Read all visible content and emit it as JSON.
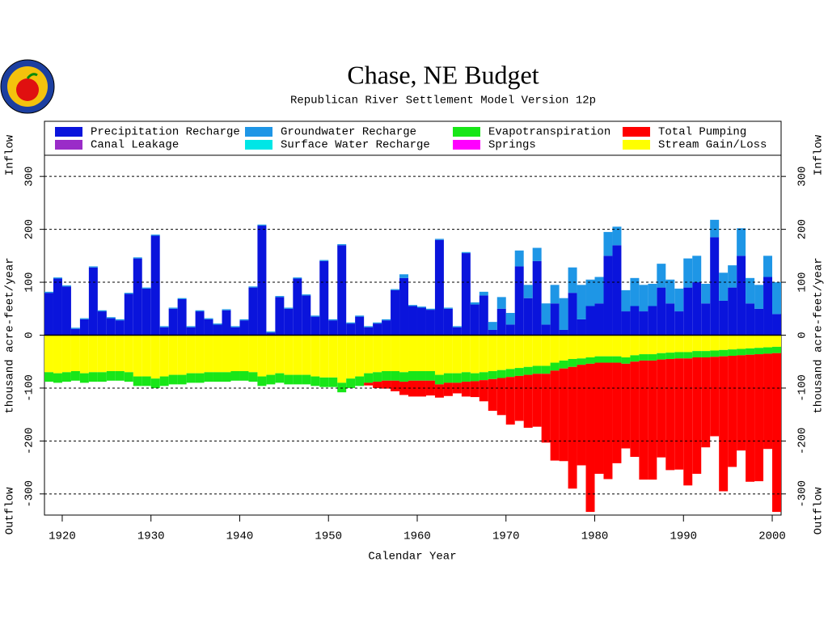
{
  "chart_data": {
    "type": "stacked-bar",
    "title": "Chase, NE Budget",
    "subtitle": "Republican River Settlement Model Version 12p",
    "xlabel": "Calendar Year",
    "ylabel": "thousand acre-feet/year",
    "ylabel_top": "Inflow",
    "ylabel_bottom": "Outflow",
    "x": [
      1918,
      1919,
      1920,
      1921,
      1922,
      1923,
      1924,
      1925,
      1926,
      1927,
      1928,
      1929,
      1930,
      1931,
      1932,
      1933,
      1934,
      1935,
      1936,
      1937,
      1938,
      1939,
      1940,
      1941,
      1942,
      1943,
      1944,
      1945,
      1946,
      1947,
      1948,
      1949,
      1950,
      1951,
      1952,
      1953,
      1954,
      1955,
      1956,
      1957,
      1958,
      1959,
      1960,
      1961,
      1962,
      1963,
      1964,
      1965,
      1966,
      1967,
      1968,
      1969,
      1970,
      1971,
      1972,
      1973,
      1974,
      1975,
      1976,
      1977,
      1978,
      1979,
      1980,
      1981,
      1982,
      1983,
      1984,
      1985,
      1986,
      1987,
      1988,
      1989,
      1990,
      1991,
      1992,
      1993,
      1994,
      1995,
      1996,
      1997,
      1998,
      1999,
      2000
    ],
    "xlim": [
      1918,
      2001
    ],
    "xticks": [
      1920,
      1930,
      1940,
      1950,
      1960,
      1970,
      1980,
      1990,
      2000
    ],
    "ylim": [
      -340,
      340
    ],
    "yticks": [
      -300,
      -200,
      -100,
      0,
      100,
      200,
      300
    ],
    "grid": true,
    "series": [
      {
        "name": "Precipitation Recharge",
        "color": "#0a14dc",
        "values": [
          80,
          107,
          92,
          12,
          30,
          128,
          45,
          32,
          28,
          78,
          145,
          88,
          188,
          15,
          50,
          68,
          15,
          45,
          30,
          20,
          47,
          15,
          28,
          90,
          207,
          5,
          72,
          50,
          107,
          75,
          35,
          140,
          28,
          170,
          22,
          35,
          15,
          22,
          28,
          85,
          108,
          55,
          52,
          48,
          180,
          50,
          15,
          155,
          58,
          75,
          10,
          50,
          20,
          130,
          70,
          140,
          20,
          60,
          10,
          80,
          30,
          55,
          60,
          150,
          170,
          45,
          55,
          45,
          55,
          90,
          60,
          45,
          90,
          100,
          60,
          185,
          65,
          90,
          150,
          60,
          50,
          110,
          40
        ]
      },
      {
        "name": "Canal Leakage",
        "color": "#9a2cc8",
        "values": [
          0,
          0,
          0,
          0,
          0,
          0,
          0,
          0,
          0,
          0,
          0,
          0,
          0,
          0,
          0,
          0,
          0,
          0,
          0,
          0,
          0,
          0,
          0,
          0,
          0,
          0,
          0,
          0,
          0,
          0,
          0,
          0,
          0,
          0,
          0,
          0,
          0,
          0,
          0,
          0,
          0,
          0,
          0,
          0,
          0,
          0,
          0,
          0,
          0,
          0,
          0,
          0,
          0,
          0,
          0,
          0,
          0,
          0,
          0,
          0,
          0,
          0,
          0,
          0,
          0,
          0,
          0,
          0,
          0,
          0,
          0,
          0,
          0,
          0,
          0,
          0,
          0,
          0,
          0,
          0,
          0,
          0,
          0
        ]
      },
      {
        "name": "Groundwater Recharge",
        "color": "#1e96e6",
        "values": [
          2,
          2,
          2,
          2,
          2,
          2,
          2,
          2,
          2,
          2,
          2,
          2,
          2,
          2,
          2,
          2,
          2,
          2,
          2,
          2,
          2,
          2,
          2,
          2,
          2,
          2,
          2,
          2,
          2,
          2,
          2,
          2,
          2,
          2,
          2,
          2,
          2,
          2,
          2,
          2,
          7,
          2,
          2,
          2,
          2,
          2,
          2,
          2,
          4,
          7,
          15,
          22,
          22,
          30,
          25,
          25,
          40,
          35,
          60,
          48,
          65,
          50,
          50,
          45,
          35,
          40,
          53,
          50,
          42,
          45,
          45,
          43,
          55,
          50,
          37,
          33,
          53,
          42,
          52,
          48,
          45,
          40,
          60
        ]
      },
      {
        "name": "Surface Water Recharge",
        "color": "#00e6e6",
        "values": [
          0,
          0,
          0,
          0,
          0,
          0,
          0,
          0,
          0,
          0,
          0,
          0,
          0,
          0,
          0,
          0,
          0,
          0,
          0,
          0,
          0,
          0,
          0,
          0,
          0,
          0,
          0,
          0,
          0,
          0,
          0,
          0,
          0,
          0,
          0,
          0,
          0,
          0,
          0,
          0,
          0,
          0,
          0,
          0,
          0,
          0,
          0,
          0,
          0,
          0,
          0,
          0,
          0,
          0,
          0,
          0,
          0,
          0,
          0,
          0,
          0,
          0,
          0,
          0,
          0,
          0,
          0,
          0,
          0,
          0,
          0,
          0,
          0,
          0,
          0,
          0,
          0,
          0,
          0,
          0,
          0,
          0,
          0
        ]
      },
      {
        "name": "Stream Gain/Loss",
        "color": "#ffff00",
        "values": [
          -70,
          -72,
          -70,
          -68,
          -72,
          -70,
          -70,
          -68,
          -68,
          -70,
          -78,
          -78,
          -82,
          -78,
          -75,
          -75,
          -72,
          -72,
          -70,
          -70,
          -70,
          -68,
          -68,
          -70,
          -78,
          -75,
          -72,
          -75,
          -75,
          -75,
          -78,
          -80,
          -80,
          -90,
          -82,
          -78,
          -72,
          -70,
          -68,
          -68,
          -70,
          -68,
          -68,
          -68,
          -75,
          -72,
          -72,
          -70,
          -72,
          -70,
          -68,
          -66,
          -64,
          -62,
          -60,
          -58,
          -58,
          -52,
          -48,
          -45,
          -44,
          -42,
          -40,
          -40,
          -40,
          -42,
          -38,
          -36,
          -36,
          -34,
          -33,
          -32,
          -32,
          -30,
          -30,
          -29,
          -28,
          -27,
          -26,
          -25,
          -24,
          -23,
          -22
        ]
      },
      {
        "name": "Evapotranspiration",
        "color": "#18e618",
        "values": [
          -18,
          -18,
          -18,
          -18,
          -18,
          -18,
          -18,
          -18,
          -18,
          -18,
          -18,
          -18,
          -18,
          -18,
          -18,
          -18,
          -18,
          -18,
          -18,
          -18,
          -18,
          -18,
          -18,
          -18,
          -18,
          -18,
          -18,
          -18,
          -18,
          -18,
          -18,
          -18,
          -18,
          -18,
          -18,
          -18,
          -18,
          -18,
          -18,
          -18,
          -18,
          -18,
          -18,
          -18,
          -18,
          -18,
          -18,
          -18,
          -15,
          -15,
          -15,
          -15,
          -15,
          -15,
          -15,
          -15,
          -15,
          -15,
          -15,
          -15,
          -12,
          -12,
          -12,
          -12,
          -12,
          -12,
          -12,
          -12,
          -12,
          -12,
          -12,
          -12,
          -12,
          -12,
          -12,
          -12,
          -12,
          -12,
          -12,
          -12,
          -12,
          -12,
          -12
        ]
      },
      {
        "name": "Springs",
        "color": "#ff00ff",
        "values": [
          0,
          0,
          0,
          0,
          0,
          0,
          0,
          0,
          0,
          0,
          0,
          0,
          0,
          0,
          0,
          0,
          0,
          0,
          0,
          0,
          0,
          0,
          0,
          0,
          0,
          0,
          0,
          0,
          0,
          0,
          0,
          0,
          0,
          0,
          0,
          0,
          0,
          0,
          0,
          0,
          0,
          0,
          0,
          0,
          0,
          0,
          0,
          0,
          0,
          0,
          0,
          0,
          0,
          0,
          0,
          0,
          0,
          0,
          0,
          0,
          0,
          0,
          0,
          0,
          0,
          0,
          0,
          0,
          0,
          0,
          0,
          0,
          0,
          0,
          0,
          0,
          0,
          0,
          0,
          0,
          0,
          0,
          0
        ]
      },
      {
        "name": "Total Pumping",
        "color": "#ff0000",
        "values": [
          0,
          0,
          0,
          0,
          0,
          0,
          0,
          0,
          0,
          0,
          0,
          0,
          0,
          0,
          0,
          0,
          0,
          0,
          0,
          0,
          0,
          0,
          0,
          0,
          0,
          0,
          0,
          0,
          0,
          0,
          0,
          0,
          0,
          0,
          0,
          0,
          -5,
          -12,
          -15,
          -20,
          -25,
          -30,
          -30,
          -28,
          -25,
          -25,
          -20,
          -28,
          -30,
          -40,
          -60,
          -70,
          -90,
          -85,
          -100,
          -100,
          -130,
          -170,
          -175,
          -230,
          -190,
          -280,
          -210,
          -220,
          -190,
          -160,
          -180,
          -225,
          -225,
          -185,
          -210,
          -210,
          -240,
          -220,
          -170,
          -150,
          -255,
          -210,
          -180,
          -240,
          -240,
          -180,
          -300
        ]
      }
    ]
  }
}
